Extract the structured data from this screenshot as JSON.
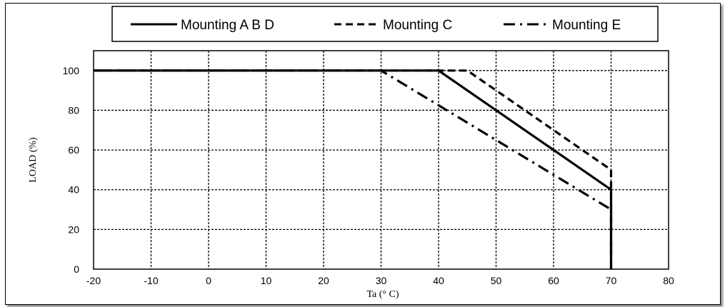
{
  "chart_data": {
    "type": "line",
    "title": "",
    "xlabel": "Ta (° C)",
    "ylabel": "LOAD (%)",
    "xlim": [
      -20,
      80
    ],
    "ylim": [
      0,
      110
    ],
    "xticks": [
      "-20",
      "-10",
      "0",
      "10",
      "20",
      "30",
      "40",
      "50",
      "60",
      "70",
      "80"
    ],
    "yticks": [
      "0",
      "20",
      "40",
      "60",
      "80",
      "100"
    ],
    "grid": true,
    "legend_position": "top",
    "series": [
      {
        "name": "Mounting A B D",
        "style": "solid",
        "x": [
          -20,
          40,
          70,
          70
        ],
        "y": [
          100,
          100,
          40,
          0
        ]
      },
      {
        "name": "Mounting C",
        "style": "dashed",
        "x": [
          -20,
          45,
          70,
          70
        ],
        "y": [
          100,
          100,
          50,
          0
        ]
      },
      {
        "name": "Mounting E",
        "style": "dashdot",
        "x": [
          -20,
          30,
          70,
          70
        ],
        "y": [
          100,
          100,
          30,
          0
        ]
      }
    ],
    "colors": {
      "line": "#000000",
      "grid": "#000000",
      "frame": "#000000"
    }
  }
}
